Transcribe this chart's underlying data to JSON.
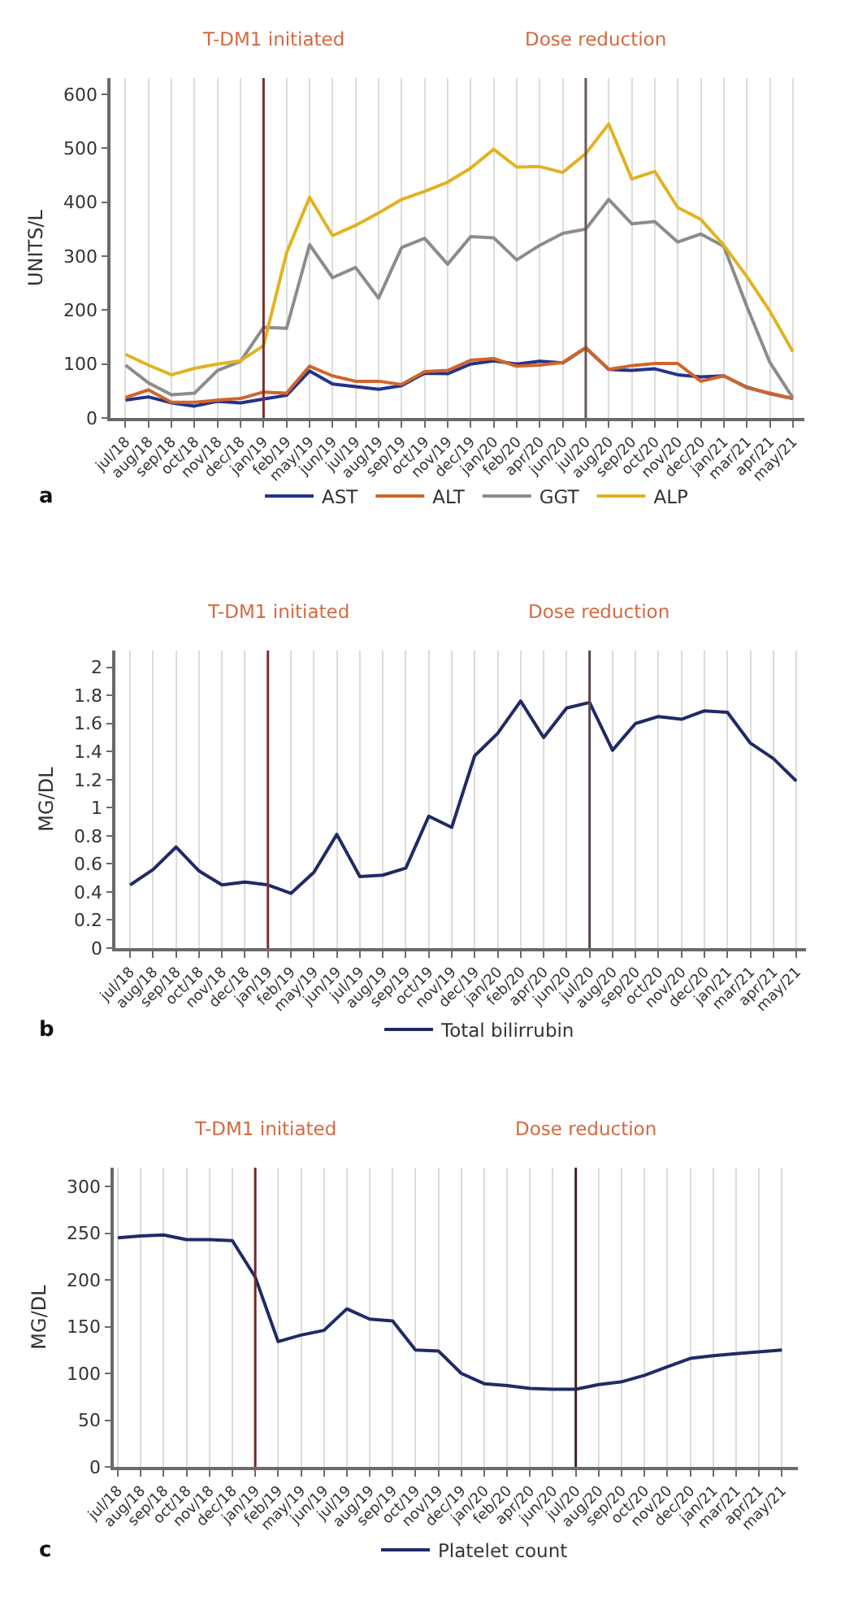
{
  "chart_data": [
    {
      "type": "line",
      "ylabel": "UNITS/L",
      "categories": [
        "jul/18",
        "aug/18",
        "sep/18",
        "oct/18",
        "nov/18",
        "dec/18",
        "jan/19",
        "feb/19",
        "may/19",
        "jun/19",
        "jul/19",
        "aug/19",
        "sep/19",
        "oct/19",
        "nov/19",
        "dec/19",
        "jan/20",
        "feb/20",
        "apr/20",
        "jun/20",
        "jul/20",
        "aug/20",
        "sep/20",
        "oct/20",
        "nov/20",
        "dec/20",
        "jan/21",
        "mar/21",
        "apr/21",
        "may/21"
      ],
      "ylim": [
        0,
        630
      ],
      "yticks": [
        0,
        100,
        200,
        300,
        400,
        500,
        600
      ],
      "grid": "x",
      "legend": "bottom",
      "annotations": [
        "a"
      ],
      "ref_lines": [
        {
          "axis": "x",
          "value": "jan/19",
          "label": "T-DM1 initiated",
          "color": "#7a2e2e"
        },
        {
          "axis": "x",
          "value": "jul/20",
          "label": "Dose reduction",
          "color": "#6b5555"
        }
      ],
      "series": [
        {
          "name": "AST",
          "color": "#22338c",
          "values": [
            33,
            39,
            28,
            22,
            31,
            28,
            35,
            42,
            87,
            63,
            58,
            53,
            60,
            83,
            82,
            100,
            106,
            100,
            105,
            102,
            130,
            90,
            88,
            91,
            80,
            76,
            78,
            57,
            45,
            36
          ]
        },
        {
          "name": "ALT",
          "color": "#d0652a",
          "values": [
            38,
            52,
            29,
            29,
            33,
            36,
            48,
            46,
            96,
            78,
            68,
            68,
            62,
            86,
            88,
            107,
            110,
            96,
            98,
            103,
            130,
            90,
            97,
            101,
            101,
            68,
            78,
            56,
            46,
            36
          ]
        },
        {
          "name": "GGT",
          "color": "#8c8c8c",
          "values": [
            98,
            65,
            43,
            46,
            88,
            105,
            168,
            166,
            321,
            260,
            279,
            222,
            316,
            333,
            285,
            336,
            334,
            293,
            320,
            342,
            350,
            405,
            360,
            364,
            326,
            341,
            318,
            207,
            103,
            37
          ]
        },
        {
          "name": "ALP",
          "color": "#e2b222",
          "values": [
            118,
            98,
            80,
            92,
            100,
            106,
            134,
            306,
            409,
            338,
            357,
            380,
            405,
            420,
            437,
            463,
            498,
            465,
            466,
            455,
            490,
            545,
            443,
            457,
            390,
            368,
            320,
            262,
            198,
            123
          ]
        }
      ]
    },
    {
      "type": "line",
      "ylabel": "MG/DL",
      "categories": [
        "jul/18",
        "aug/18",
        "sep/18",
        "oct/18",
        "nov/18",
        "dec/18",
        "jan/19",
        "feb/19",
        "may/19",
        "jun/19",
        "jul/19",
        "aug/19",
        "sep/19",
        "oct/19",
        "nov/19",
        "dec/19",
        "jan/20",
        "feb/20",
        "apr/20",
        "jun/20",
        "jul/20",
        "aug/20",
        "sep/20",
        "oct/20",
        "nov/20",
        "dec/20",
        "jan/21",
        "mar/21",
        "apr/21",
        "may/21"
      ],
      "ylim": [
        0,
        2.12
      ],
      "yticks": [
        0,
        0.2,
        0.4,
        0.6,
        0.8,
        1,
        1.2,
        1.4,
        1.6,
        1.8,
        2
      ],
      "grid": "x",
      "legend": "bottom",
      "annotations": [
        "b"
      ],
      "ref_lines": [
        {
          "axis": "x",
          "value": "jan/19",
          "label": "T-DM1 initiated",
          "color": "#7a2e2e"
        },
        {
          "axis": "x",
          "value": "jul/20",
          "label": "Dose reduction",
          "color": "#5c4848"
        }
      ],
      "series": [
        {
          "name": "Total bilirrubin",
          "color": "#1f2b66",
          "values": [
            0.45,
            0.56,
            0.72,
            0.55,
            0.45,
            0.47,
            0.45,
            0.39,
            0.54,
            0.81,
            0.51,
            0.52,
            0.57,
            0.94,
            0.86,
            1.37,
            1.53,
            1.76,
            1.5,
            1.71,
            1.75,
            1.41,
            1.6,
            1.65,
            1.63,
            1.69,
            1.68,
            1.46,
            1.35,
            1.19
          ]
        }
      ]
    },
    {
      "type": "line",
      "ylabel": "MG/DL",
      "categories": [
        "jul/18",
        "aug/18",
        "sep/18",
        "oct/18",
        "nov/18",
        "dec/18",
        "jan/19",
        "feb/19",
        "may/19",
        "jun/19",
        "jul/19",
        "aug/19",
        "sep/19",
        "oct/19",
        "nov/19",
        "dec/19",
        "jan/20",
        "feb/20",
        "apr/20",
        "jun/20",
        "jul/20",
        "aug/20",
        "sep/20",
        "oct/20",
        "nov/20",
        "dec/20",
        "jan/21",
        "mar/21",
        "apr/21",
        "may/21"
      ],
      "ylim": [
        0,
        320
      ],
      "yticks": [
        0,
        50,
        100,
        150,
        200,
        250,
        300
      ],
      "grid": "x",
      "legend": "bottom",
      "annotations": [
        "c"
      ],
      "ref_lines": [
        {
          "axis": "x",
          "value": "jan/19",
          "label": "T-DM1 initiated",
          "color": "#6e2a2a"
        },
        {
          "axis": "x",
          "value": "jul/20",
          "label": "Dose reduction",
          "color": "#3d2424"
        }
      ],
      "series": [
        {
          "name": "Platelet count",
          "color": "#1f2b66",
          "values": [
            245,
            247,
            248,
            243,
            243,
            242,
            203,
            134,
            141,
            146,
            169,
            158,
            156,
            125,
            124,
            100,
            89,
            87,
            84,
            83,
            83,
            88,
            91,
            98,
            107,
            116,
            119,
            121,
            123,
            125
          ]
        }
      ]
    }
  ]
}
